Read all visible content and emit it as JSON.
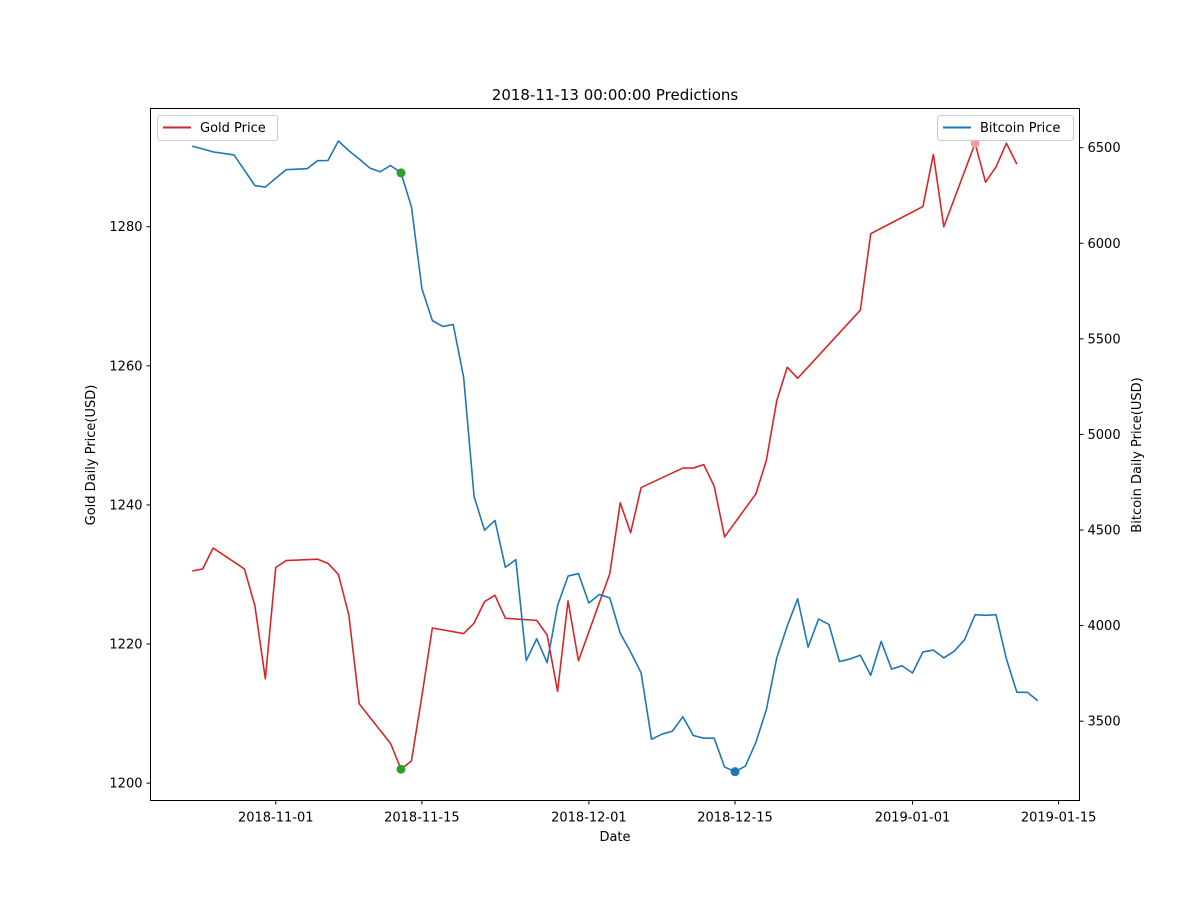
{
  "chart_data": {
    "type": "line",
    "title": "2018-11-13 00:00:00 Predictions",
    "xlabel": "Date",
    "ylabel_left": "Gold Daily Price(USD)",
    "ylabel_right": "Bitcoin Daily Price(USD)",
    "x_ticks": [
      "2018-11-01",
      "2018-11-15",
      "2018-12-01",
      "2018-12-15",
      "2019-01-01",
      "2019-01-15"
    ],
    "y_left_ticks": [
      1200,
      1220,
      1240,
      1260,
      1280
    ],
    "y_right_ticks": [
      3500,
      4000,
      4500,
      5000,
      5500,
      6000,
      6500
    ],
    "x_range": [
      "2018-10-20",
      "2019-01-17"
    ],
    "y_left_range": [
      1197.5,
      1297
    ],
    "y_right_range": [
      3085,
      6705
    ],
    "legend_left": {
      "placement": "top-left"
    },
    "legend_right": {
      "placement": "top-right"
    },
    "colors": {
      "gold": "#d62728",
      "bitcoin": "#1f77b4",
      "marker_green": "#2ca02c"
    },
    "series": [
      {
        "name": "Gold Price",
        "axis": "left",
        "color": "#d62728",
        "points": [
          [
            "2018-10-24",
            1230.5
          ],
          [
            "2018-10-25",
            1230.8
          ],
          [
            "2018-10-26",
            1233.8
          ],
          [
            "2018-10-29",
            1230.8
          ],
          [
            "2018-10-30",
            1225.5
          ],
          [
            "2018-10-31",
            1215.0
          ],
          [
            "2018-11-01",
            1231.0
          ],
          [
            "2018-11-02",
            1232.0
          ],
          [
            "2018-11-05",
            1232.2
          ],
          [
            "2018-11-06",
            1231.6
          ],
          [
            "2018-11-07",
            1230.0
          ],
          [
            "2018-11-08",
            1224.2
          ],
          [
            "2018-11-09",
            1211.4
          ],
          [
            "2018-11-12",
            1205.7
          ],
          [
            "2018-11-13",
            1202.0
          ],
          [
            "2018-11-14",
            1203.2
          ],
          [
            "2018-11-15",
            1212.5
          ],
          [
            "2018-11-16",
            1222.3
          ],
          [
            "2018-11-19",
            1221.5
          ],
          [
            "2018-11-20",
            1223.0
          ],
          [
            "2018-11-21",
            1226.1
          ],
          [
            "2018-11-22",
            1227.0
          ],
          [
            "2018-11-23",
            1223.7
          ],
          [
            "2018-11-26",
            1223.4
          ],
          [
            "2018-11-27",
            1221.3
          ],
          [
            "2018-11-28",
            1213.2
          ],
          [
            "2018-11-29",
            1226.2
          ],
          [
            "2018-11-30",
            1217.6
          ],
          [
            "2018-12-03",
            1230.1
          ],
          [
            "2018-12-04",
            1240.3
          ],
          [
            "2018-12-05",
            1236.0
          ],
          [
            "2018-12-06",
            1242.5
          ],
          [
            "2018-12-10",
            1245.3
          ],
          [
            "2018-12-11",
            1245.3
          ],
          [
            "2018-12-12",
            1245.8
          ],
          [
            "2018-12-13",
            1242.7
          ],
          [
            "2018-12-14",
            1235.4
          ],
          [
            "2018-12-17",
            1241.6
          ],
          [
            "2018-12-18",
            1246.4
          ],
          [
            "2018-12-19",
            1255.0
          ],
          [
            "2018-12-20",
            1259.8
          ],
          [
            "2018-12-21",
            1258.2
          ],
          [
            "2018-12-27",
            1268.0
          ],
          [
            "2018-12-28",
            1279.0
          ],
          [
            "2019-01-02",
            1282.9
          ],
          [
            "2019-01-03",
            1290.4
          ],
          [
            "2019-01-04",
            1280.0
          ],
          [
            "2019-01-07",
            1292.0
          ],
          [
            "2019-01-08",
            1286.4
          ],
          [
            "2019-01-09",
            1288.6
          ],
          [
            "2019-01-10",
            1292.0
          ],
          [
            "2019-01-11",
            1289.0
          ]
        ]
      },
      {
        "name": "Bitcoin Price",
        "axis": "right",
        "color": "#1f77b4",
        "points": [
          [
            "2018-10-24",
            6508
          ],
          [
            "2018-10-26",
            6478
          ],
          [
            "2018-10-28",
            6462
          ],
          [
            "2018-10-30",
            6302
          ],
          [
            "2018-10-31",
            6294
          ],
          [
            "2018-11-01",
            6340
          ],
          [
            "2018-11-02",
            6385
          ],
          [
            "2018-11-04",
            6390
          ],
          [
            "2018-11-05",
            6432
          ],
          [
            "2018-11-06",
            6433
          ],
          [
            "2018-11-07",
            6535
          ],
          [
            "2018-11-08",
            6484
          ],
          [
            "2018-11-09",
            6441
          ],
          [
            "2018-11-10",
            6394
          ],
          [
            "2018-11-11",
            6374
          ],
          [
            "2018-11-12",
            6407
          ],
          [
            "2018-11-13",
            6368
          ],
          [
            "2018-11-14",
            6190
          ],
          [
            "2018-11-15",
            5763
          ],
          [
            "2018-11-16",
            5596
          ],
          [
            "2018-11-17",
            5565
          ],
          [
            "2018-11-18",
            5575
          ],
          [
            "2018-11-19",
            5298
          ],
          [
            "2018-11-20",
            4676
          ],
          [
            "2018-11-21",
            4499
          ],
          [
            "2018-11-22",
            4550
          ],
          [
            "2018-11-23",
            4305
          ],
          [
            "2018-11-24",
            4345
          ],
          [
            "2018-11-25",
            3817
          ],
          [
            "2018-11-26",
            3931
          ],
          [
            "2018-11-27",
            3806
          ],
          [
            "2018-11-28",
            4105
          ],
          [
            "2018-11-29",
            4259
          ],
          [
            "2018-11-30",
            4272
          ],
          [
            "2018-12-01",
            4118
          ],
          [
            "2018-12-02",
            4163
          ],
          [
            "2018-12-03",
            4145
          ],
          [
            "2018-12-04",
            3960
          ],
          [
            "2018-12-05",
            3862
          ],
          [
            "2018-12-06",
            3753
          ],
          [
            "2018-12-07",
            3405
          ],
          [
            "2018-12-08",
            3432
          ],
          [
            "2018-12-09",
            3448
          ],
          [
            "2018-12-10",
            3523
          ],
          [
            "2018-12-11",
            3425
          ],
          [
            "2018-12-12",
            3411
          ],
          [
            "2018-12-13",
            3411
          ],
          [
            "2018-12-14",
            3260
          ],
          [
            "2018-12-15",
            3236
          ],
          [
            "2018-12-16",
            3265
          ],
          [
            "2018-12-17",
            3390
          ],
          [
            "2018-12-18",
            3560
          ],
          [
            "2018-12-19",
            3831
          ],
          [
            "2018-12-20",
            3998
          ],
          [
            "2018-12-21",
            4140
          ],
          [
            "2018-12-22",
            3887
          ],
          [
            "2018-12-23",
            4034
          ],
          [
            "2018-12-24",
            4006
          ],
          [
            "2018-12-25",
            3812
          ],
          [
            "2018-12-26",
            3825
          ],
          [
            "2018-12-27",
            3845
          ],
          [
            "2018-12-28",
            3740
          ],
          [
            "2018-12-29",
            3917
          ],
          [
            "2018-12-30",
            3772
          ],
          [
            "2018-12-31",
            3790
          ],
          [
            "2019-01-01",
            3752
          ],
          [
            "2019-01-02",
            3862
          ],
          [
            "2019-01-03",
            3872
          ],
          [
            "2019-01-04",
            3831
          ],
          [
            "2019-01-05",
            3866
          ],
          [
            "2019-01-06",
            3927
          ],
          [
            "2019-01-07",
            4057
          ],
          [
            "2019-01-08",
            4054
          ],
          [
            "2019-01-09",
            4057
          ],
          [
            "2019-01-10",
            3825
          ],
          [
            "2019-01-11",
            3651
          ],
          [
            "2019-01-12",
            3651
          ],
          [
            "2019-01-13",
            3607
          ]
        ]
      }
    ],
    "markers": [
      {
        "series": "Gold Price",
        "axis": "left",
        "date": "2018-11-13",
        "value": 1202.0,
        "color": "#2ca02c"
      },
      {
        "series": "Bitcoin Price",
        "axis": "right",
        "date": "2018-11-13",
        "value": 6368,
        "color": "#2ca02c"
      },
      {
        "series": "Bitcoin Price",
        "axis": "right",
        "date": "2018-12-15",
        "value": 3236,
        "color": "#1f77b4"
      },
      {
        "series": "Gold Price",
        "axis": "left",
        "date": "2019-01-07",
        "value": 1292.0,
        "color": "#ff9896"
      }
    ]
  }
}
